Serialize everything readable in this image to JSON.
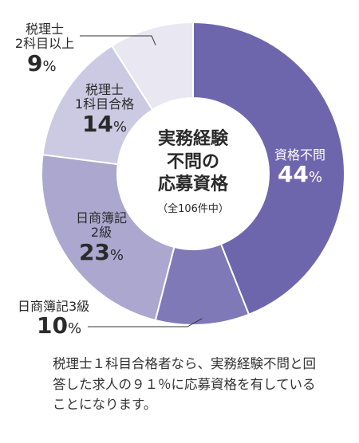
{
  "chart_data": {
    "type": "pie",
    "title": "実務経験\n不問の\n応募資格",
    "subtitle": "（全106件中）",
    "slices": [
      {
        "label": "資格不問",
        "value": 44,
        "display": "44",
        "color": "#6e66ad"
      },
      {
        "label": "日商簿記3級",
        "value": 10,
        "display": "10",
        "color": "#8079b8"
      },
      {
        "label": "日商簿記\n2級",
        "value": 23,
        "display": "23",
        "color": "#aba7cf"
      },
      {
        "label": "税理士\n1科目合格",
        "value": 14,
        "display": "14",
        "color": "#ccc9e3"
      },
      {
        "label": "税理士\n2科目以上",
        "value": 9,
        "display": "9",
        "color": "#e9e7f2"
      }
    ],
    "percent_sign": "%",
    "caption": "税理士１科目合格者なら、実務経験不問と回答した求人の９１％に応募資格を有していることになります。"
  }
}
